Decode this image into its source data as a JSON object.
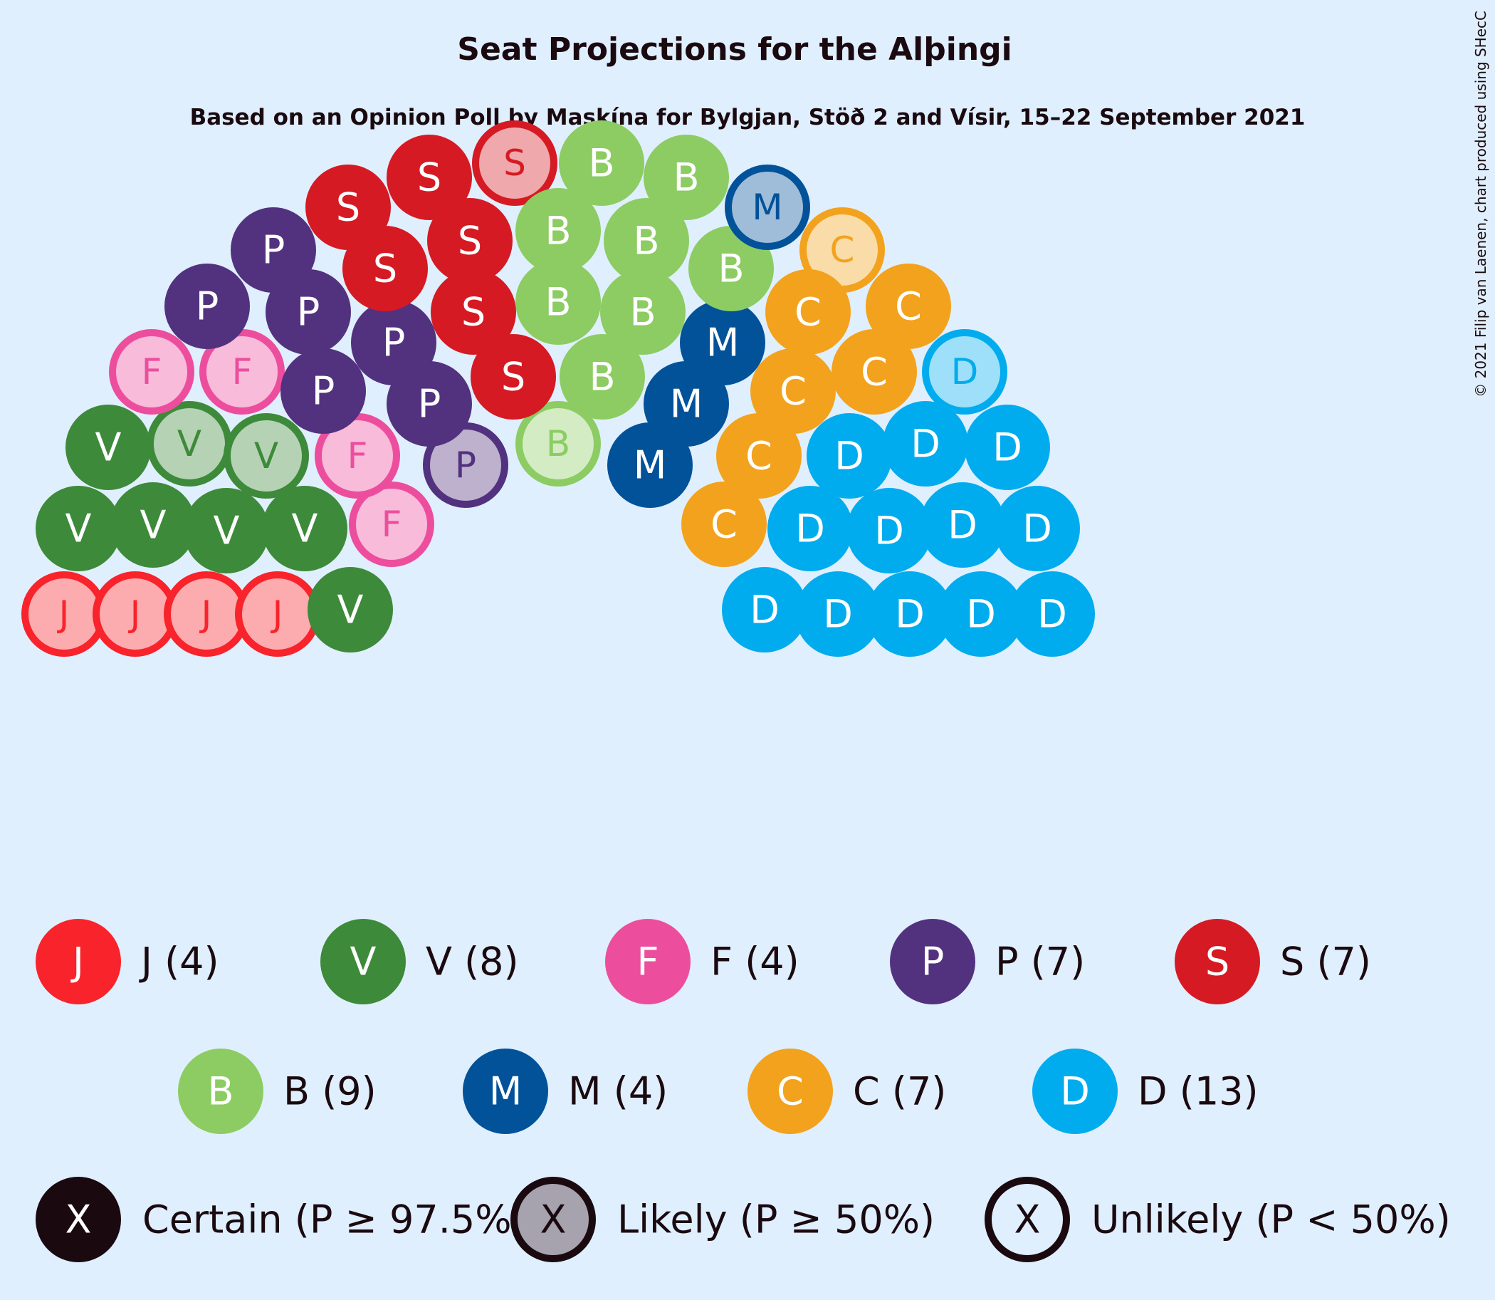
{
  "chart_data": {
    "type": "parliament",
    "title": "Seat Projections for the Alþingi",
    "subtitle": "Based on an Opinion Poll by Maskína for Bylgjan, Stöð 2 and Vísir, 15–22 September 2021",
    "copyright": "© 2021 Filip van Laenen, chart produced using SHecC",
    "parties": [
      {
        "letter": "J",
        "seats": 4,
        "color": "#f8232b",
        "legend": "J (4)",
        "certain": 0,
        "likely": 0,
        "unlikely": 4
      },
      {
        "letter": "V",
        "seats": 8,
        "color": "#3d8a3a",
        "legend": "V (8)",
        "certain": 6,
        "likely": 0,
        "unlikely": 2
      },
      {
        "letter": "F",
        "seats": 4,
        "color": "#ec4e9d",
        "legend": "F (4)",
        "certain": 0,
        "likely": 0,
        "unlikely": 4
      },
      {
        "letter": "P",
        "seats": 7,
        "color": "#52317f",
        "legend": "P (7)",
        "certain": 6,
        "likely": 0,
        "unlikely": 1
      },
      {
        "letter": "S",
        "seats": 7,
        "color": "#d51a23",
        "legend": "S (7)",
        "certain": 6,
        "likely": 0,
        "unlikely": 1
      },
      {
        "letter": "B",
        "seats": 9,
        "color": "#8ccc63",
        "legend": "B (9)",
        "certain": 8,
        "likely": 0,
        "unlikely": 1
      },
      {
        "letter": "M",
        "seats": 4,
        "color": "#02529a",
        "legend": "M (4)",
        "certain": 3,
        "likely": 0,
        "unlikely": 1
      },
      {
        "letter": "C",
        "seats": 7,
        "color": "#f3a21d",
        "legend": "C (7)",
        "certain": 6,
        "likely": 0,
        "unlikely": 1
      },
      {
        "letter": "D",
        "seats": 13,
        "color": "#00acee",
        "legend": "D (13)",
        "certain": 12,
        "likely": 0,
        "unlikely": 1
      }
    ],
    "probability_legend": [
      {
        "symbol": "X",
        "label": "Certain (P ≥ 97.5%)",
        "style": "certain"
      },
      {
        "symbol": "X",
        "label": "Likely (P ≥ 50%)",
        "style": "likely"
      },
      {
        "symbol": "X",
        "label": "Unlikely (P < 50%)",
        "style": "unlikely"
      }
    ]
  }
}
